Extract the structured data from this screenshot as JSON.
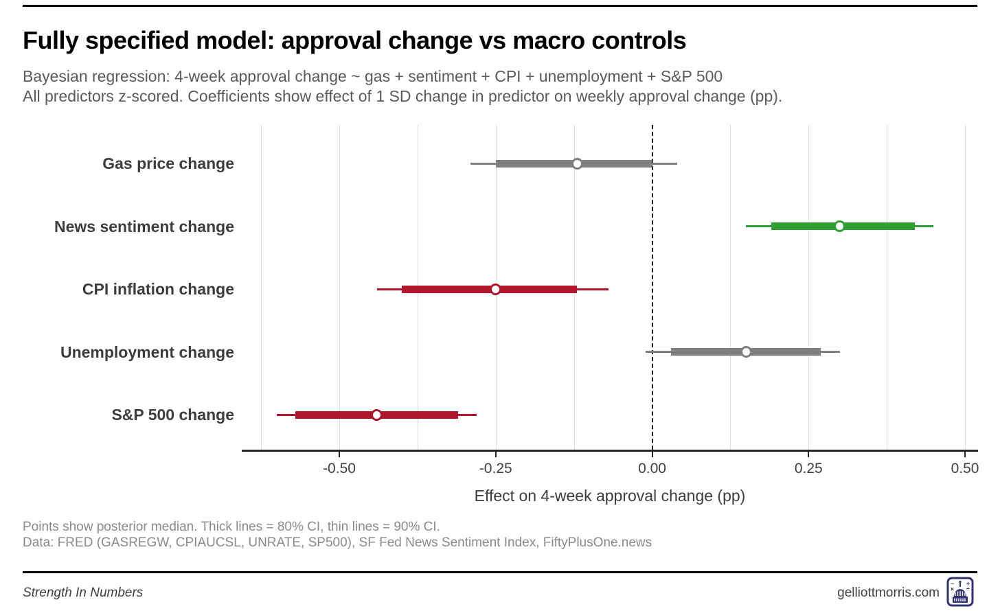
{
  "header": {
    "title": "Fully specified model: approval change vs macro controls",
    "subtitle_line1": "Bayesian regression: 4-week approval change ~ gas + sentiment + CPI + unemployment + S&P 500",
    "subtitle_line2": "All predictors z-scored. Coefficients show effect of 1 SD change in predictor on weekly approval change (pp)."
  },
  "chart_data": {
    "type": "scatter",
    "subtype": "coefficient-interval-plot (dot = posterior median, thick bar = 80% CI, thin line = 90% CI)",
    "title": "Fully specified model: approval change vs macro controls",
    "xlabel": "Effect on 4-week approval change (pp)",
    "ylabel": "",
    "xlim": [
      -0.655,
      0.52
    ],
    "grid": "vertical light gridlines every 0.125; dashed black reference line at 0",
    "legend_position": "none",
    "x_ticks": [
      {
        "value": -0.5,
        "label": "-0.50"
      },
      {
        "value": -0.25,
        "label": "-0.25"
      },
      {
        "value": 0.0,
        "label": "0.00"
      },
      {
        "value": 0.25,
        "label": "0.25"
      },
      {
        "value": 0.5,
        "label": "0.50"
      }
    ],
    "gridline_values": [
      -0.625,
      -0.5,
      -0.375,
      -0.25,
      -0.125,
      0.125,
      0.25,
      0.375,
      0.5
    ],
    "zero_reference": 0,
    "rows": [
      {
        "label": "Gas price change",
        "median": -0.12,
        "ci80": [
          -0.25,
          0.0
        ],
        "ci90": [
          -0.29,
          0.04
        ],
        "color": "#7f7f7f"
      },
      {
        "label": "News sentiment change",
        "median": 0.3,
        "ci80": [
          0.19,
          0.42
        ],
        "ci90": [
          0.15,
          0.45
        ],
        "color": "#2f9e33"
      },
      {
        "label": "CPI inflation change",
        "median": -0.25,
        "ci80": [
          -0.4,
          -0.12
        ],
        "ci90": [
          -0.44,
          -0.07
        ],
        "color": "#b0162b"
      },
      {
        "label": "Unemployment change",
        "median": 0.15,
        "ci80": [
          0.03,
          0.27
        ],
        "ci90": [
          -0.01,
          0.3
        ],
        "color": "#7f7f7f"
      },
      {
        "label": "S&P 500 change",
        "median": -0.44,
        "ci80": [
          -0.57,
          -0.31
        ],
        "ci90": [
          -0.6,
          -0.28
        ],
        "color": "#b0162b"
      }
    ]
  },
  "caption": {
    "line1": "Points show posterior median. Thick lines = 80% CI, thin lines = 90% CI.",
    "line2": "Data: FRED (GASREGW, CPIAUCSL, UNRATE, SP500), SF Fed News Sentiment Index, FiftyPlusOne.news"
  },
  "footer": {
    "left": "Strength In Numbers",
    "right": "gelliottmorris.com",
    "logo": "capitol-icon"
  },
  "colors": {
    "positive_series": "#2f9e33",
    "negative_series": "#b0162b",
    "neutral_series": "#7f7f7f",
    "gridline": "#dddddd",
    "axis": "#262626",
    "zero_line": "#1b1b1b",
    "subtitle_text": "#5a5a5a",
    "caption_text": "#8a8a8a",
    "logo_navy": "#32326e"
  }
}
